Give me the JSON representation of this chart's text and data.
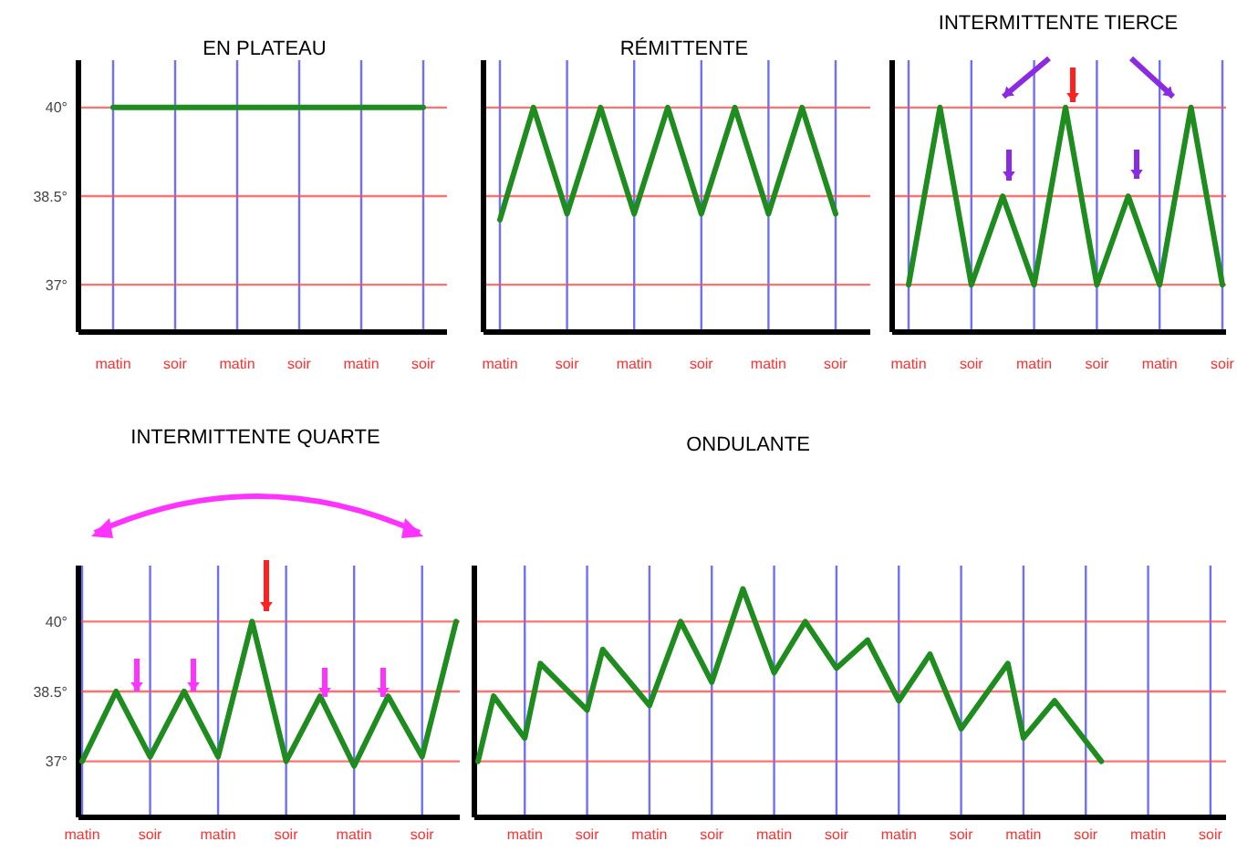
{
  "chart_data": [
    {
      "type": "line",
      "title": "EN PLATEAU",
      "categories": [
        "matin",
        "soir",
        "matin",
        "soir",
        "matin",
        "soir"
      ],
      "values": [
        40,
        40,
        40,
        40,
        40,
        40
      ],
      "color": "#1e8c1e",
      "ylim": [
        36.2,
        40.8
      ],
      "yticks": [
        {
          "value": 40,
          "label": "40°"
        },
        {
          "value": 38.5,
          "label": "38.5°"
        },
        {
          "value": 37,
          "label": "37°"
        }
      ],
      "grid": true
    },
    {
      "type": "line",
      "title": "RÉMITTENTE",
      "categories": [
        "matin",
        null,
        "soir",
        null,
        "matin",
        null,
        "soir",
        null,
        "matin",
        null,
        "soir"
      ],
      "values": [
        38.1,
        40,
        38.2,
        40,
        38.2,
        40,
        38.2,
        40,
        38.2,
        40,
        38.2
      ],
      "color": "#1e8c1e",
      "ylim": [
        36.2,
        40.8
      ],
      "yticks": [
        40,
        38.5,
        37
      ],
      "grid": true,
      "tick_labels": "x"
    },
    {
      "type": "line",
      "title": "INTERMITTENTE TIERCE",
      "categories": [
        "matin",
        null,
        "soir",
        null,
        "matin",
        null,
        "soir",
        null,
        "matin",
        null,
        "soir"
      ],
      "values": [
        37,
        40,
        37,
        38.5,
        37,
        40,
        37,
        38.5,
        37,
        40,
        37
      ],
      "color": "#1e8c1e",
      "ylim": [
        36.2,
        40.8
      ],
      "yticks": [
        40,
        38.5,
        37
      ],
      "grid": true,
      "tick_labels": "x"
    },
    {
      "type": "line",
      "title": "INTERMITTENTE QUARTE",
      "categories": [
        "matin",
        null,
        "soir",
        null,
        "matin",
        null,
        "soir",
        null,
        "matin",
        null,
        "soir",
        null
      ],
      "values": [
        37,
        38.5,
        37.1,
        38.5,
        37.1,
        40,
        37,
        38.4,
        36.9,
        38.4,
        37.1,
        40
      ],
      "color": "#1e8c1e",
      "ylim": [
        35.8,
        41.2
      ],
      "yticks": [
        {
          "value": 40,
          "label": "40°"
        },
        {
          "value": 38.5,
          "label": "38.5°"
        },
        {
          "value": 37,
          "label": "37°"
        }
      ],
      "grid": true
    },
    {
      "type": "line",
      "title": "ONDULANTE",
      "categories": [
        null,
        null,
        null,
        "matin",
        null,
        null,
        null,
        "soir",
        null,
        null,
        null,
        "matin",
        null,
        null,
        null,
        "soir",
        null,
        null,
        null,
        "matin",
        null,
        null,
        null,
        "soir",
        null,
        null,
        null,
        "matin",
        null,
        null,
        null,
        "soir",
        null,
        null,
        null,
        "matin",
        null,
        null,
        null,
        "soir",
        null,
        null,
        null,
        "matin",
        null,
        null,
        null,
        "soir",
        null
      ],
      "values": [
        37,
        38.4,
        null,
        37.5,
        39.1,
        null,
        null,
        38.1,
        39.4,
        null,
        null,
        38.2,
        null,
        40,
        null,
        38.7,
        null,
        40.7,
        null,
        38.9,
        null,
        40,
        null,
        39,
        null,
        39.6,
        null,
        38.3,
        null,
        39.3,
        null,
        37.7,
        null,
        null,
        39.1,
        37.5,
        null,
        38.3,
        null,
        null,
        37,
        null,
        null,
        null,
        null,
        null,
        null,
        null,
        null
      ],
      "color": "#1e8c1e",
      "ylim": [
        35.8,
        41.2
      ],
      "yticks": [
        40,
        38.5,
        37
      ],
      "grid": true,
      "tick_labels": "x"
    }
  ]
}
